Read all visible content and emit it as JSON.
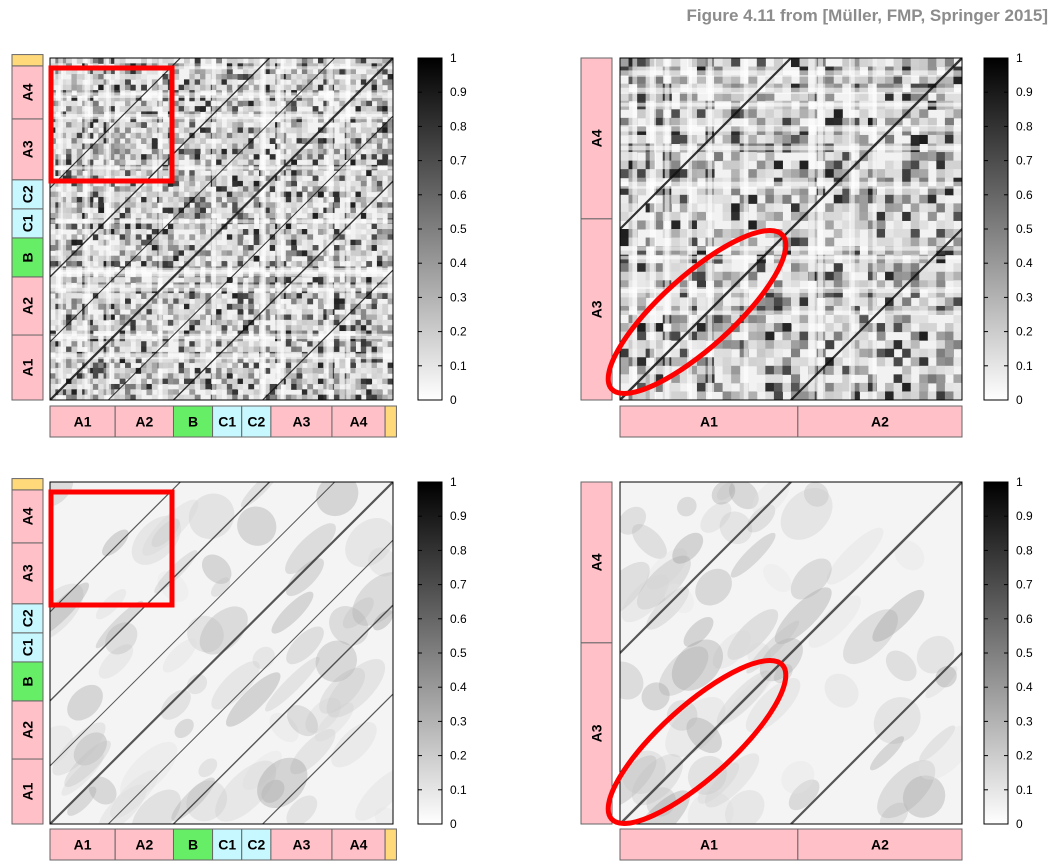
{
  "caption": "Figure 4.11 from [Müller, FMP, Springer 2015]",
  "colors": {
    "A": "#ffc0c8",
    "B": "#66ee66",
    "C": "#c8f8ff",
    "end": "#ffd97a",
    "highlight": "#ff0000"
  },
  "colorbar": {
    "ticks": [
      "0",
      "0.1",
      "0.2",
      "0.3",
      "0.4",
      "0.5",
      "0.6",
      "0.7",
      "0.8",
      "0.9",
      "1"
    ],
    "range": [
      0,
      1
    ]
  },
  "full_segments": [
    {
      "label": "A1",
      "type": "A",
      "frac": 0.19
    },
    {
      "label": "A2",
      "type": "A",
      "frac": 0.17
    },
    {
      "label": "B",
      "type": "B",
      "frac": 0.114
    },
    {
      "label": "C1",
      "type": "C",
      "frac": 0.085
    },
    {
      "label": "C2",
      "type": "C",
      "frac": 0.085
    },
    {
      "label": "A3",
      "type": "A",
      "frac": 0.178
    },
    {
      "label": "A4",
      "type": "A",
      "frac": 0.155
    },
    {
      "label": "",
      "type": "end",
      "frac": 0.033
    }
  ],
  "zoom_x_segments": [
    {
      "label": "A1",
      "type": "A",
      "frac": 0.52
    },
    {
      "label": "A2",
      "type": "A",
      "frac": 0.48
    }
  ],
  "zoom_y_segments": [
    {
      "label": "A3",
      "type": "A",
      "frac": 0.53
    },
    {
      "label": "A4",
      "type": "A",
      "frac": 0.47
    }
  ],
  "panels": [
    {
      "id": "top-left-full-ssm",
      "kind": "full",
      "style": "coarse"
    },
    {
      "id": "top-right-zoom-ssm",
      "kind": "zoom",
      "style": "coarse"
    },
    {
      "id": "bottom-left-full-ssm",
      "kind": "full",
      "style": "smooth"
    },
    {
      "id": "bottom-right-zoom-ssm",
      "kind": "zoom",
      "style": "smooth"
    }
  ]
}
